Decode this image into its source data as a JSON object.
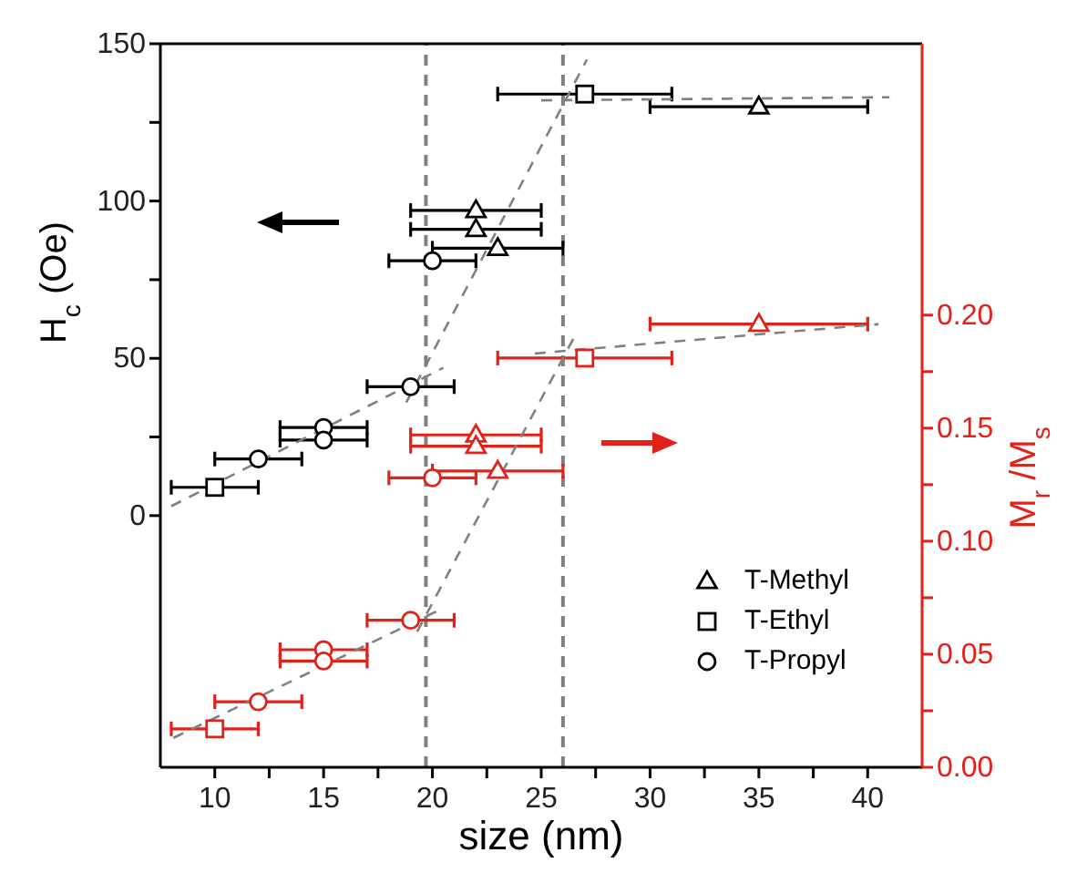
{
  "chart_data": {
    "type": "scatter",
    "xlabel": "size (nm)",
    "ylabel": "H$_{c}$ (Oe)",
    "y2label": "M$_{r}$ /M$_{s}$",
    "xlim": [
      7.5,
      42.5
    ],
    "xticks": [
      10,
      {
        "value": 12.5,
        "label": null
      },
      15,
      {
        "value": 17.5,
        "label": null
      },
      20,
      {
        "value": 22.5,
        "label": null
      },
      25,
      {
        "value": 27.5,
        "label": null
      },
      30,
      {
        "value": 32.5,
        "label": null
      },
      35,
      {
        "value": 37.5,
        "label": null
      },
      40
    ],
    "ylim": [
      -80,
      150
    ],
    "yticks": [
      0,
      {
        "value": 25,
        "label": null
      },
      50,
      {
        "value": 75,
        "label": null
      },
      100,
      {
        "value": 125,
        "label": null
      },
      150
    ],
    "y2lim": [
      0,
      0.32
    ],
    "y2ticks": [
      {
        "value": 0,
        "label": "0.00"
      },
      {
        "value": 0.025,
        "label": null
      },
      {
        "value": 0.05,
        "label": "0.05"
      },
      {
        "value": 0.075,
        "label": null
      },
      {
        "value": 0.1,
        "label": "0.10"
      },
      {
        "value": 0.125,
        "label": null
      },
      {
        "value": 0.15,
        "label": "0.15"
      },
      {
        "value": 0.175,
        "label": null
      },
      {
        "value": 0.2,
        "label": "0.20"
      }
    ],
    "legend": "bottom right",
    "ref_lines": [
      {
        "axis": "x",
        "value": 19.7,
        "color": "#808080",
        "line_style": "dashed"
      },
      {
        "axis": "x",
        "value": 26,
        "color": "#808080",
        "line_style": "dashed"
      }
    ],
    "series": [
      {
        "name": "T-Methyl",
        "color": "#000000",
        "marker": "triangle",
        "x": [
          22,
          22,
          23,
          35
        ],
        "values": [
          97,
          91,
          85,
          130
        ],
        "xerrors": [
          3,
          3,
          3,
          5
        ]
      },
      {
        "name": "T-Ethyl",
        "color": "#000000",
        "marker": "square",
        "x": [
          10,
          27
        ],
        "values": [
          9,
          134
        ],
        "xerrors": [
          2,
          4
        ]
      },
      {
        "name": "T-Propyl",
        "color": "#000000",
        "marker": "circle",
        "x": [
          12,
          15,
          15,
          19,
          20
        ],
        "values": [
          18,
          28,
          24,
          41,
          81
        ],
        "xerrors": [
          2,
          2,
          2,
          2,
          2
        ]
      },
      {
        "color": "#e32119",
        "marker": "triangle",
        "axis": "y2",
        "x": [
          22,
          22,
          23,
          35
        ],
        "values": [
          0.147,
          0.142,
          0.131,
          0.196
        ],
        "xerrors": [
          3,
          3,
          3,
          5
        ]
      },
      {
        "color": "#e32119",
        "marker": "square",
        "axis": "y2",
        "x": [
          10,
          27
        ],
        "values": [
          0.017,
          0.181
        ],
        "xerrors": [
          2,
          4
        ]
      },
      {
        "color": "#e32119",
        "marker": "circle",
        "axis": "y2",
        "x": [
          12,
          15,
          15,
          19,
          20
        ],
        "values": [
          0.029,
          0.052,
          0.047,
          0.065,
          0.128
        ],
        "xerrors": [
          2,
          2,
          2,
          2,
          2
        ]
      },
      {
        "type": "line",
        "color": "#808080",
        "line_style": "dashed",
        "x": [
          8,
          20.5
        ],
        "values": [
          3,
          47
        ]
      },
      {
        "type": "line",
        "color": "#808080",
        "line_style": "dashed",
        "x": [
          18.8,
          27.1
        ],
        "values": [
          36,
          145
        ]
      },
      {
        "type": "line",
        "color": "#808080",
        "line_style": "dashed",
        "x": [
          25,
          41
        ],
        "values": [
          132,
          133
        ]
      },
      {
        "type": "line",
        "color": "#808080",
        "line_style": "dashed",
        "axis": "y2",
        "x": [
          8.1,
          20.2
        ],
        "values": [
          0.013,
          0.069
        ]
      },
      {
        "type": "line",
        "color": "#808080",
        "line_style": "dashed",
        "axis": "y2",
        "x": [
          19.3,
          26.5
        ],
        "values": [
          0.06,
          0.19
        ]
      },
      {
        "type": "line",
        "color": "#808080",
        "line_style": "dashed",
        "axis": "y2",
        "x": [
          24.7,
          40.5
        ],
        "values": [
          0.183,
          0.196
        ]
      }
    ]
  }
}
